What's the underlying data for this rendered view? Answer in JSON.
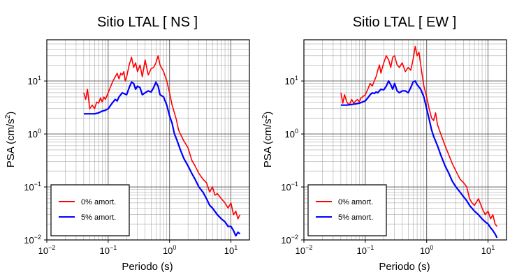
{
  "chart_data": [
    {
      "type": "line",
      "title": "Sitio LTAL [ NS ]",
      "xlabel": "Periodo (s)",
      "ylabel_main": "PSA (cm/s",
      "ylabel_exp": "2",
      "ylabel_close": ")",
      "x_scale": "log",
      "y_scale": "log",
      "xlim": [
        0.01,
        20
      ],
      "ylim": [
        0.01,
        60
      ],
      "grid": true,
      "legend_position": "bottom-left",
      "x_ticks": [
        {
          "base": "10",
          "exp": "−2",
          "value": 0.01
        },
        {
          "base": "10",
          "exp": "−1",
          "value": 0.1
        },
        {
          "base": "10",
          "exp": "0",
          "value": 1
        },
        {
          "base": "10",
          "exp": "1",
          "value": 10
        }
      ],
      "y_ticks": [
        {
          "base": "10",
          "exp": "−2",
          "value": 0.01
        },
        {
          "base": "10",
          "exp": "−1",
          "value": 0.1
        },
        {
          "base": "10",
          "exp": "0",
          "value": 1
        },
        {
          "base": "10",
          "exp": "1",
          "value": 10
        }
      ],
      "series": [
        {
          "name": "0% amort.",
          "color": "#ff0000",
          "x": [
            0.04,
            0.043,
            0.046,
            0.05,
            0.055,
            0.06,
            0.065,
            0.07,
            0.075,
            0.08,
            0.085,
            0.09,
            0.1,
            0.11,
            0.12,
            0.13,
            0.14,
            0.15,
            0.16,
            0.17,
            0.18,
            0.19,
            0.2,
            0.22,
            0.24,
            0.26,
            0.28,
            0.3,
            0.33,
            0.36,
            0.4,
            0.45,
            0.5,
            0.55,
            0.6,
            0.65,
            0.7,
            0.8,
            0.9,
            1.0,
            1.1,
            1.2,
            1.3,
            1.4,
            1.5,
            1.7,
            2.0,
            2.3,
            2.6,
            3.0,
            3.5,
            4.0,
            4.5,
            5.0,
            5.5,
            6.0,
            7.0,
            8.0,
            9.0,
            10,
            11,
            12,
            13,
            14
          ],
          "values": [
            6.0,
            4.5,
            7.0,
            3.0,
            3.5,
            3.0,
            4.0,
            3.8,
            4.8,
            4.0,
            5.0,
            4.5,
            6.0,
            8.0,
            10,
            12,
            14,
            11,
            14,
            13,
            15,
            10,
            12,
            20,
            28,
            18,
            22,
            15,
            20,
            12,
            25,
            13,
            17,
            18,
            22,
            30,
            20,
            15,
            10,
            6.0,
            3.5,
            2.5,
            1.8,
            1.2,
            1.0,
            0.75,
            0.55,
            0.32,
            0.25,
            0.18,
            0.14,
            0.12,
            0.08,
            0.1,
            0.07,
            0.075,
            0.06,
            0.05,
            0.04,
            0.05,
            0.03,
            0.035,
            0.025,
            0.03
          ]
        },
        {
          "name": "5% amort.",
          "color": "#0000ff",
          "x": [
            0.04,
            0.05,
            0.06,
            0.07,
            0.08,
            0.09,
            0.1,
            0.11,
            0.12,
            0.13,
            0.14,
            0.15,
            0.16,
            0.17,
            0.18,
            0.2,
            0.22,
            0.24,
            0.26,
            0.28,
            0.3,
            0.33,
            0.36,
            0.4,
            0.45,
            0.5,
            0.55,
            0.6,
            0.65,
            0.7,
            0.8,
            0.9,
            1.0,
            1.1,
            1.2,
            1.3,
            1.5,
            1.7,
            2.0,
            2.3,
            2.6,
            3.0,
            3.5,
            4.0,
            4.5,
            5.0,
            6.0,
            7.0,
            8.0,
            9.0,
            10,
            11,
            12,
            13,
            14
          ],
          "values": [
            2.4,
            2.4,
            2.4,
            2.5,
            2.7,
            2.8,
            3.0,
            3.5,
            4.0,
            4.5,
            4.2,
            5.0,
            5.5,
            6.0,
            5.8,
            5.5,
            7.5,
            9.5,
            9.0,
            7.0,
            8.0,
            7.5,
            5.5,
            6.0,
            6.5,
            6.2,
            7.5,
            9.5,
            8.0,
            5.5,
            5.0,
            3.5,
            2.2,
            1.6,
            1.0,
            0.8,
            0.5,
            0.35,
            0.25,
            0.18,
            0.14,
            0.1,
            0.08,
            0.06,
            0.045,
            0.04,
            0.03,
            0.025,
            0.022,
            0.018,
            0.018,
            0.015,
            0.012,
            0.014,
            0.013
          ]
        }
      ]
    },
    {
      "type": "line",
      "title": "Sitio LTAL [ EW ]",
      "xlabel": "Periodo (s)",
      "ylabel_main": "PSA (cm/s",
      "ylabel_exp": "2",
      "ylabel_close": ")",
      "x_scale": "log",
      "y_scale": "log",
      "xlim": [
        0.01,
        20
      ],
      "ylim": [
        0.01,
        60
      ],
      "grid": true,
      "legend_position": "bottom-left",
      "x_ticks": [
        {
          "base": "10",
          "exp": "−2",
          "value": 0.01
        },
        {
          "base": "10",
          "exp": "−1",
          "value": 0.1
        },
        {
          "base": "10",
          "exp": "0",
          "value": 1
        },
        {
          "base": "10",
          "exp": "1",
          "value": 10
        }
      ],
      "y_ticks": [
        {
          "base": "10",
          "exp": "−2",
          "value": 0.01
        },
        {
          "base": "10",
          "exp": "−1",
          "value": 0.1
        },
        {
          "base": "10",
          "exp": "0",
          "value": 1
        },
        {
          "base": "10",
          "exp": "1",
          "value": 10
        }
      ],
      "series": [
        {
          "name": "0% amort.",
          "color": "#ff0000",
          "x": [
            0.04,
            0.043,
            0.046,
            0.05,
            0.055,
            0.06,
            0.065,
            0.07,
            0.075,
            0.08,
            0.085,
            0.09,
            0.1,
            0.11,
            0.12,
            0.13,
            0.14,
            0.15,
            0.16,
            0.17,
            0.18,
            0.19,
            0.2,
            0.22,
            0.24,
            0.26,
            0.28,
            0.3,
            0.33,
            0.36,
            0.4,
            0.45,
            0.5,
            0.55,
            0.6,
            0.65,
            0.7,
            0.75,
            0.8,
            0.9,
            1.0,
            1.1,
            1.2,
            1.3,
            1.4,
            1.5,
            1.7,
            2.0,
            2.3,
            2.6,
            3.0,
            3.5,
            4.0,
            4.5,
            5.0,
            5.5,
            6.0,
            7.0,
            8.0,
            9.0,
            10,
            11,
            12,
            13,
            14
          ],
          "values": [
            6.0,
            3.8,
            5.5,
            4.0,
            3.5,
            4.5,
            3.8,
            4.2,
            4.5,
            4.0,
            4.8,
            5.0,
            5.5,
            7.0,
            9.0,
            8.0,
            10,
            12,
            16,
            20,
            14,
            18,
            22,
            30,
            25,
            18,
            28,
            30,
            20,
            18,
            22,
            15,
            18,
            16,
            25,
            45,
            30,
            35,
            20,
            8.0,
            5.0,
            3.0,
            2.0,
            1.8,
            2.5,
            1.5,
            1.0,
            0.6,
            0.4,
            0.28,
            0.2,
            0.14,
            0.12,
            0.1,
            0.06,
            0.05,
            0.045,
            0.06,
            0.04,
            0.03,
            0.035,
            0.025,
            0.03,
            0.02,
            0.018
          ]
        },
        {
          "name": "5% amort.",
          "color": "#0000ff",
          "x": [
            0.04,
            0.05,
            0.06,
            0.07,
            0.08,
            0.09,
            0.1,
            0.11,
            0.12,
            0.13,
            0.14,
            0.15,
            0.16,
            0.17,
            0.18,
            0.2,
            0.22,
            0.24,
            0.26,
            0.28,
            0.3,
            0.33,
            0.36,
            0.4,
            0.45,
            0.5,
            0.55,
            0.6,
            0.65,
            0.7,
            0.8,
            0.9,
            1.0,
            1.1,
            1.2,
            1.3,
            1.5,
            1.7,
            2.0,
            2.3,
            2.6,
            3.0,
            3.5,
            4.0,
            4.5,
            5.0,
            6.0,
            7.0,
            8.0,
            9.0,
            10,
            11,
            12,
            13,
            14
          ],
          "values": [
            3.5,
            3.5,
            3.6,
            3.7,
            3.8,
            4.0,
            4.2,
            4.8,
            5.5,
            6.0,
            5.8,
            6.2,
            6.0,
            6.5,
            7.0,
            6.8,
            8.0,
            10,
            8.5,
            7.0,
            9.0,
            6.5,
            6.0,
            6.5,
            6.5,
            6.0,
            7.5,
            9.5,
            10,
            8.5,
            7.0,
            5.0,
            3.0,
            1.9,
            1.2,
            0.9,
            0.6,
            0.4,
            0.25,
            0.18,
            0.13,
            0.1,
            0.08,
            0.065,
            0.055,
            0.045,
            0.035,
            0.03,
            0.025,
            0.022,
            0.02,
            0.017,
            0.015,
            0.013,
            0.011
          ]
        }
      ]
    }
  ]
}
